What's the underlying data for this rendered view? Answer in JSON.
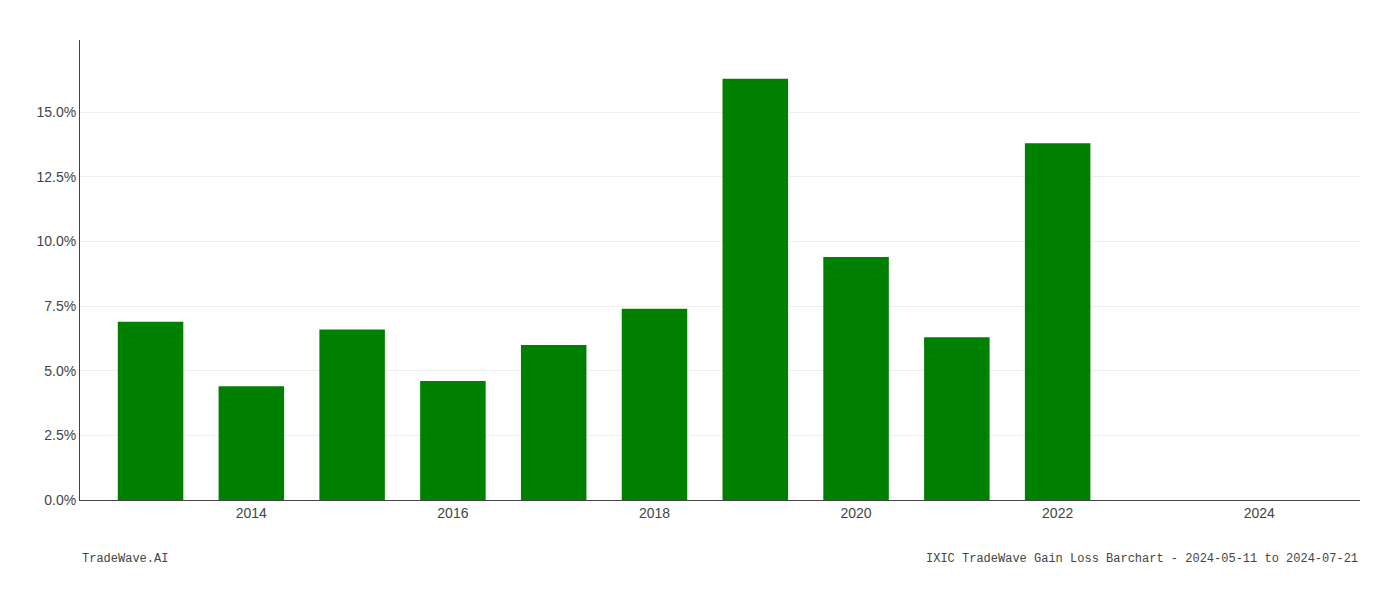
{
  "chart_data": {
    "type": "bar",
    "x": [
      2013,
      2014,
      2015,
      2016,
      2017,
      2018,
      2019,
      2020,
      2021,
      2022,
      2023
    ],
    "values": [
      0.069,
      0.044,
      0.066,
      0.046,
      0.06,
      0.074,
      0.163,
      0.094,
      0.063,
      0.138,
      0.0
    ],
    "color": "#008000",
    "xlim": [
      2012.3,
      2025.0
    ],
    "xticks": [
      2014,
      2016,
      2018,
      2020,
      2022,
      2024
    ],
    "ylim": [
      0.0,
      0.178
    ],
    "yticks": [
      {
        "value": 0.0,
        "label": "0.0%"
      },
      {
        "value": 0.025,
        "label": "2.5%"
      },
      {
        "value": 0.05,
        "label": "5.0%"
      },
      {
        "value": 0.075,
        "label": "7.5%"
      },
      {
        "value": 0.1,
        "label": "10.0%"
      },
      {
        "value": 0.125,
        "label": "12.5%"
      },
      {
        "value": 0.15,
        "label": "15.0%"
      }
    ],
    "grid": true,
    "annotations": [
      "TradeWave.AI",
      "IXIC TradeWave Gain Loss Barchart - 2024-05-11 to 2024-07-21"
    ]
  }
}
